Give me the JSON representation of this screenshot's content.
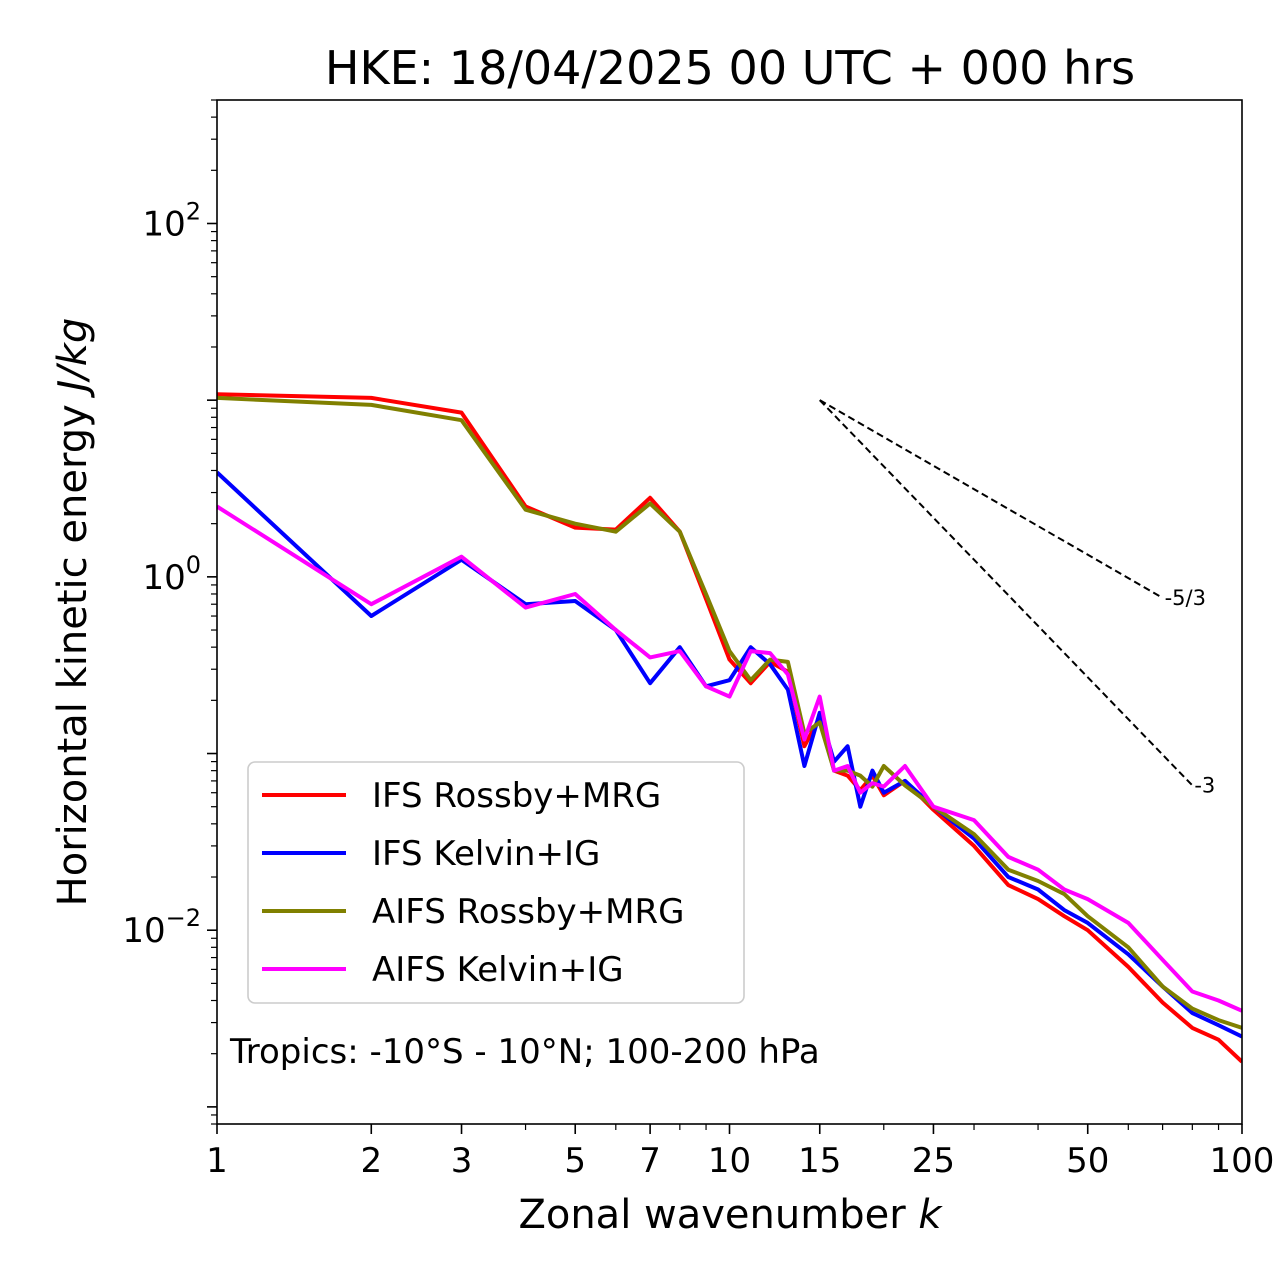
{
  "chart_data": {
    "type": "line",
    "title": "HKE: 18/04/2025 00 UTC + 000 hrs",
    "xlabel": "Zonal wavenumber k",
    "ylabel": "Horizontal kinetic energy J/kg",
    "xscale": "log",
    "yscale": "log",
    "xlim": [
      1,
      100
    ],
    "ylim": [
      0.0008,
      500
    ],
    "x_ticks": [
      "1",
      "2",
      "3",
      "5",
      "7",
      "10",
      "15",
      "25",
      "50",
      "100"
    ],
    "y_ticks": [
      "10^-2",
      "10^0",
      "10^2"
    ],
    "annotation": "Tropics: -10°S - 10°N; 100-200 hPa",
    "legend_position": "lower-left",
    "reference_slopes": [
      {
        "label": "-5/3",
        "x": [
          15,
          70
        ],
        "y": [
          10.0,
          0.76
        ]
      },
      {
        "label": "-3",
        "x": [
          15,
          80
        ],
        "y": [
          10.0,
          0.066
        ]
      }
    ],
    "series": [
      {
        "name": "IFS Rossby+MRG",
        "color": "#ff0000",
        "x": [
          1,
          2,
          3,
          4,
          5,
          6,
          7,
          8,
          9,
          10,
          11,
          12,
          13,
          14,
          15,
          16,
          17,
          18,
          19,
          20,
          22,
          25,
          30,
          35,
          40,
          45,
          50,
          60,
          70,
          80,
          90,
          100
        ],
        "y": [
          10.8,
          10.3,
          8.5,
          2.5,
          1.9,
          1.85,
          2.8,
          1.8,
          0.75,
          0.34,
          0.25,
          0.33,
          0.29,
          0.11,
          0.16,
          0.08,
          0.075,
          0.062,
          0.075,
          0.058,
          0.07,
          0.048,
          0.03,
          0.018,
          0.015,
          0.012,
          0.01,
          0.0062,
          0.0039,
          0.0028,
          0.0024,
          0.0018
        ]
      },
      {
        "name": "IFS Kelvin+IG",
        "color": "#0000ff",
        "x": [
          1,
          2,
          3,
          4,
          5,
          6,
          7,
          8,
          9,
          10,
          11,
          12,
          13,
          14,
          15,
          16,
          17,
          18,
          19,
          20,
          22,
          25,
          30,
          35,
          40,
          45,
          50,
          60,
          70,
          80,
          90,
          100
        ],
        "y": [
          3.9,
          0.6,
          1.25,
          0.7,
          0.73,
          0.5,
          0.25,
          0.4,
          0.24,
          0.26,
          0.4,
          0.32,
          0.23,
          0.085,
          0.17,
          0.09,
          0.11,
          0.05,
          0.08,
          0.06,
          0.07,
          0.05,
          0.033,
          0.02,
          0.017,
          0.013,
          0.011,
          0.0073,
          0.0048,
          0.0034,
          0.0029,
          0.0025
        ]
      },
      {
        "name": "AIFS Rossby+MRG",
        "color": "#808000",
        "x": [
          1,
          2,
          3,
          4,
          5,
          6,
          7,
          8,
          9,
          10,
          11,
          12,
          13,
          14,
          15,
          16,
          17,
          18,
          19,
          20,
          22,
          25,
          30,
          35,
          40,
          45,
          50,
          60,
          70,
          80,
          90,
          100
        ],
        "y": [
          10.3,
          9.4,
          7.7,
          2.4,
          2.0,
          1.8,
          2.6,
          1.8,
          0.8,
          0.38,
          0.26,
          0.34,
          0.33,
          0.13,
          0.15,
          0.08,
          0.08,
          0.075,
          0.065,
          0.085,
          0.066,
          0.05,
          0.035,
          0.022,
          0.019,
          0.016,
          0.012,
          0.008,
          0.0048,
          0.0036,
          0.0031,
          0.0028
        ]
      },
      {
        "name": "AIFS Kelvin+IG",
        "color": "#ff00ff",
        "x": [
          1,
          2,
          3,
          4,
          5,
          6,
          7,
          8,
          9,
          10,
          11,
          12,
          13,
          14,
          15,
          16,
          17,
          18,
          19,
          20,
          22,
          25,
          30,
          35,
          40,
          45,
          50,
          60,
          70,
          80,
          90,
          100
        ],
        "y": [
          2.5,
          0.7,
          1.3,
          0.67,
          0.8,
          0.5,
          0.35,
          0.38,
          0.24,
          0.21,
          0.38,
          0.37,
          0.28,
          0.12,
          0.21,
          0.08,
          0.085,
          0.06,
          0.068,
          0.065,
          0.085,
          0.05,
          0.042,
          0.026,
          0.022,
          0.017,
          0.015,
          0.011,
          0.0068,
          0.0045,
          0.004,
          0.0035
        ]
      }
    ]
  }
}
